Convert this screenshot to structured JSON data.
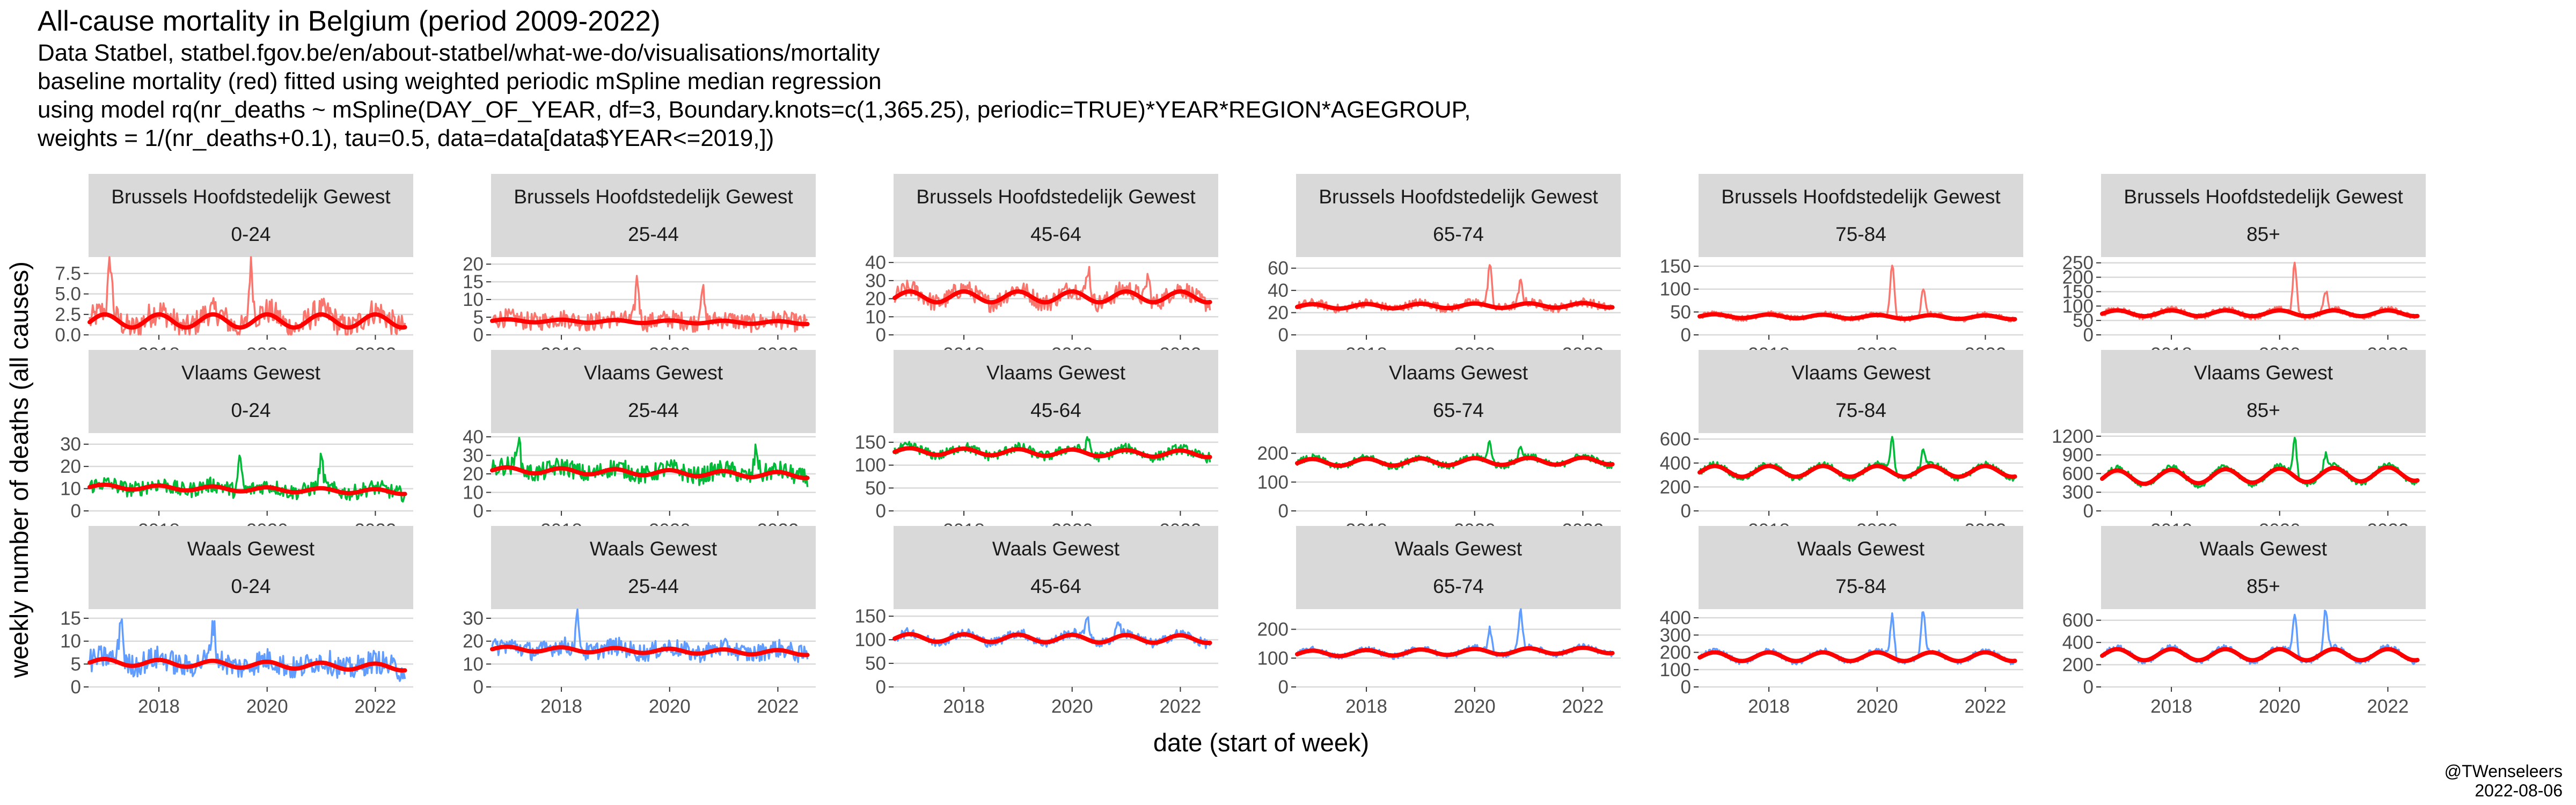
{
  "header": {
    "title": "All-cause mortality in Belgium (period 2009-2022)",
    "subtitle_lines": [
      "Data Statbel, statbel.fgov.be/en/about-statbel/what-we-do/visualisations/mortality",
      "baseline mortality (red) fitted using weighted periodic mSpline median regression",
      "using model rq(nr_deaths ~ mSpline(DAY_OF_YEAR, df=3, Boundary.knots=c(1,365.25), periodic=TRUE)*YEAR*REGION*AGEGROUP,",
      "weights = 1/(nr_deaths+0.1), tau=0.5, data=data[data$YEAR<=2019,])"
    ]
  },
  "caption": {
    "line1": "@TWenseleers",
    "line2": "2022-08-06"
  },
  "colors": {
    "fit": "#ff0000",
    "strip_bg": "#d9d9d9",
    "grid": "#d9d9d9",
    "axis_tick": "#333333",
    "brussels": "#f8766d",
    "vlaams": "#00ba38",
    "waals": "#619cff"
  },
  "chart_data": {
    "type": "line",
    "xlabel": "date (start of week)",
    "ylabel": "weekly number of deaths (all causes)",
    "xlim": [
      2016.7,
      2022.7
    ],
    "x_ticks": [
      2018,
      2020,
      2022
    ],
    "x_tick_labels": [
      "2018",
      "2020",
      "2022"
    ],
    "grid": true,
    "facet_rows": [
      "Brussels Hoofdstedelijk Gewest",
      "Vlaams Gewest",
      "Waals Gewest"
    ],
    "facet_cols": [
      "0-24",
      "25-44",
      "45-64",
      "65-74",
      "75-84",
      "85+"
    ],
    "series_legend": "observed weekly deaths (region colour), baseline fit (red)",
    "panels": [
      {
        "region": "Brussels Hoofdstedelijk Gewest",
        "age": "0-24",
        "color_key": "brussels",
        "ylim": [
          0,
          9.5
        ],
        "y_ticks": [
          0,
          2.5,
          5,
          7.5
        ],
        "y_tick_labels": [
          "0.0",
          "2.5",
          "5.0",
          "7.5"
        ],
        "baseline_mean": 1.7,
        "baseline_amp": 0.8,
        "trend_per_year": 0,
        "noise": 1.6,
        "peaks": [
          {
            "x": 2019.7,
            "y": 8.8
          },
          {
            "x": 2017.1,
            "y": 8.0
          }
        ]
      },
      {
        "region": "Brussels Hoofdstedelijk Gewest",
        "age": "25-44",
        "color_key": "brussels",
        "ylim": [
          0,
          22
        ],
        "y_ticks": [
          0,
          5,
          10,
          15,
          20
        ],
        "y_tick_labels": [
          "0",
          "5",
          "10",
          "15",
          "20"
        ],
        "baseline_mean": 3.8,
        "baseline_amp": 0.4,
        "trend_per_year": -0.1,
        "noise": 2.6,
        "peaks": [
          {
            "x": 2019.4,
            "y": 16
          },
          {
            "x": 2020.6,
            "y": 14
          }
        ]
      },
      {
        "region": "Brussels Hoofdstedelijk Gewest",
        "age": "45-64",
        "color_key": "brussels",
        "ylim": [
          0,
          43
        ],
        "y_ticks": [
          0,
          10,
          20,
          30,
          40
        ],
        "y_tick_labels": [
          "0",
          "10",
          "20",
          "30",
          "40"
        ],
        "baseline_mean": 21,
        "baseline_amp": 3,
        "trend_per_year": 0,
        "noise": 5,
        "peaks": [
          {
            "x": 2020.3,
            "y": 38
          },
          {
            "x": 2021.4,
            "y": 35
          }
        ]
      },
      {
        "region": "Brussels Hoofdstedelijk Gewest",
        "age": "65-74",
        "color_key": "brussels",
        "ylim": [
          0,
          70
        ],
        "y_ticks": [
          0,
          20,
          40,
          60
        ],
        "y_tick_labels": [
          "0",
          "20",
          "40",
          "60"
        ],
        "baseline_mean": 26,
        "baseline_amp": 2,
        "trend_per_year": 0.2,
        "noise": 4,
        "peaks": [
          {
            "x": 2020.28,
            "y": 63
          },
          {
            "x": 2020.85,
            "y": 45
          }
        ]
      },
      {
        "region": "Brussels Hoofdstedelijk Gewest",
        "age": "75-84",
        "color_key": "brussels",
        "ylim": [
          0,
          170
        ],
        "y_ticks": [
          0,
          50,
          100,
          150
        ],
        "y_tick_labels": [
          "0",
          "50",
          "100",
          "150"
        ],
        "baseline_mean": 40,
        "baseline_amp": 4,
        "trend_per_year": -0.5,
        "noise": 6,
        "peaks": [
          {
            "x": 2020.28,
            "y": 155
          },
          {
            "x": 2020.85,
            "y": 100
          }
        ]
      },
      {
        "region": "Brussels Hoofdstedelijk Gewest",
        "age": "85+",
        "color_key": "brussels",
        "ylim": [
          0,
          270
        ],
        "y_ticks": [
          0,
          50,
          100,
          150,
          200,
          250
        ],
        "y_tick_labels": [
          "0",
          "50",
          "100",
          "150",
          "200",
          "250"
        ],
        "baseline_mean": 75,
        "baseline_amp": 10,
        "trend_per_year": 0,
        "noise": 10,
        "peaks": [
          {
            "x": 2020.28,
            "y": 250
          },
          {
            "x": 2020.85,
            "y": 145
          }
        ]
      },
      {
        "region": "Vlaams Gewest",
        "age": "0-24",
        "color_key": "vlaams",
        "ylim": [
          0,
          35
        ],
        "y_ticks": [
          0,
          10,
          20,
          30
        ],
        "y_tick_labels": [
          "0",
          "10",
          "20",
          "30"
        ],
        "baseline_mean": 10,
        "baseline_amp": 1,
        "trend_per_year": -0.4,
        "noise": 3.5,
        "peaks": [
          {
            "x": 2019.5,
            "y": 24
          },
          {
            "x": 2021.0,
            "y": 23
          }
        ]
      },
      {
        "region": "Vlaams Gewest",
        "age": "25-44",
        "color_key": "vlaams",
        "ylim": [
          0,
          42
        ],
        "y_ticks": [
          0,
          10,
          20,
          30,
          40
        ],
        "y_tick_labels": [
          "0",
          "10",
          "20",
          "30",
          "40"
        ],
        "baseline_mean": 21,
        "baseline_amp": 1.5,
        "trend_per_year": -0.5,
        "noise": 5,
        "peaks": [
          {
            "x": 2017.2,
            "y": 38
          },
          {
            "x": 2021.6,
            "y": 36
          }
        ]
      },
      {
        "region": "Vlaams Gewest",
        "age": "45-64",
        "color_key": "vlaams",
        "ylim": [
          0,
          170
        ],
        "y_ticks": [
          0,
          50,
          100,
          150
        ],
        "y_tick_labels": [
          "0",
          "50",
          "100",
          "150"
        ],
        "baseline_mean": 128,
        "baseline_amp": 7,
        "trend_per_year": -1,
        "noise": 11,
        "peaks": [
          {
            "x": 2020.3,
            "y": 160
          }
        ]
      },
      {
        "region": "Vlaams Gewest",
        "age": "65-74",
        "color_key": "vlaams",
        "ylim": [
          0,
          270
        ],
        "y_ticks": [
          0,
          100,
          200
        ],
        "y_tick_labels": [
          "0",
          "100",
          "200"
        ],
        "baseline_mean": 170,
        "baseline_amp": 12,
        "trend_per_year": 1,
        "noise": 12,
        "peaks": [
          {
            "x": 2020.28,
            "y": 240
          },
          {
            "x": 2020.85,
            "y": 210
          }
        ]
      },
      {
        "region": "Vlaams Gewest",
        "age": "75-84",
        "color_key": "vlaams",
        "ylim": [
          0,
          650
        ],
        "y_ticks": [
          0,
          200,
          400,
          600
        ],
        "y_tick_labels": [
          "0",
          "200",
          "400",
          "600"
        ],
        "baseline_mean": 330,
        "baseline_amp": 45,
        "trend_per_year": 0,
        "noise": 25,
        "peaks": [
          {
            "x": 2020.28,
            "y": 630
          },
          {
            "x": 2020.85,
            "y": 480
          }
        ]
      },
      {
        "region": "Vlaams Gewest",
        "age": "85+",
        "color_key": "vlaams",
        "ylim": [
          0,
          1250
        ],
        "y_ticks": [
          0,
          300,
          600,
          900,
          1200
        ],
        "y_tick_labels": [
          "0",
          "300",
          "600",
          "900",
          "1200"
        ],
        "baseline_mean": 560,
        "baseline_amp": 110,
        "trend_per_year": 10,
        "noise": 45,
        "peaks": [
          {
            "x": 2020.28,
            "y": 1180
          },
          {
            "x": 2020.85,
            "y": 800
          }
        ]
      },
      {
        "region": "Waals Gewest",
        "age": "0-24",
        "color_key": "waals",
        "ylim": [
          0,
          17
        ],
        "y_ticks": [
          0,
          5,
          10,
          15
        ],
        "y_tick_labels": [
          "0",
          "5",
          "10",
          "15"
        ],
        "baseline_mean": 5,
        "baseline_amp": 0.7,
        "trend_per_year": -0.2,
        "noise": 2.6,
        "peaks": [
          {
            "x": 2017.3,
            "y": 15
          },
          {
            "x": 2019.0,
            "y": 13
          }
        ]
      },
      {
        "region": "Waals Gewest",
        "age": "25-44",
        "color_key": "waals",
        "ylim": [
          0,
          34
        ],
        "y_ticks": [
          0,
          10,
          20,
          30
        ],
        "y_tick_labels": [
          "0",
          "10",
          "20",
          "30"
        ],
        "baseline_mean": 16,
        "baseline_amp": 1,
        "trend_per_year": -0.3,
        "noise": 4,
        "peaks": [
          {
            "x": 2018.3,
            "y": 30
          }
        ]
      },
      {
        "region": "Waals Gewest",
        "age": "45-64",
        "color_key": "waals",
        "ylim": [
          0,
          165
        ],
        "y_ticks": [
          0,
          50,
          100,
          150
        ],
        "y_tick_labels": [
          "0",
          "50",
          "100",
          "150"
        ],
        "baseline_mean": 103,
        "baseline_amp": 8,
        "trend_per_year": -0.5,
        "noise": 10,
        "peaks": [
          {
            "x": 2020.28,
            "y": 155
          },
          {
            "x": 2020.85,
            "y": 135
          }
        ]
      },
      {
        "region": "Waals Gewest",
        "age": "65-74",
        "color_key": "waals",
        "ylim": [
          0,
          270
        ],
        "y_ticks": [
          0,
          100,
          200
        ],
        "y_tick_labels": [
          "0",
          "100",
          "200"
        ],
        "baseline_mean": 120,
        "baseline_amp": 10,
        "trend_per_year": 2,
        "noise": 10,
        "peaks": [
          {
            "x": 2020.28,
            "y": 200
          },
          {
            "x": 2020.85,
            "y": 250
          }
        ]
      },
      {
        "region": "Waals Gewest",
        "age": "75-84",
        "color_key": "waals",
        "ylim": [
          0,
          450
        ],
        "y_ticks": [
          0,
          100,
          200,
          300,
          400
        ],
        "y_tick_labels": [
          "0",
          "100",
          "200",
          "300",
          "400"
        ],
        "baseline_mean": 175,
        "baseline_amp": 25,
        "trend_per_year": 0,
        "noise": 15,
        "peaks": [
          {
            "x": 2020.28,
            "y": 420
          },
          {
            "x": 2020.85,
            "y": 420
          }
        ]
      },
      {
        "region": "Waals Gewest",
        "age": "85+",
        "color_key": "waals",
        "ylim": [
          0,
          700
        ],
        "y_ticks": [
          0,
          200,
          400,
          600
        ],
        "y_tick_labels": [
          "0",
          "200",
          "400",
          "600"
        ],
        "baseline_mean": 290,
        "baseline_amp": 50,
        "trend_per_year": 0,
        "noise": 25,
        "peaks": [
          {
            "x": 2020.28,
            "y": 670
          },
          {
            "x": 2020.85,
            "y": 660
          }
        ]
      }
    ]
  }
}
